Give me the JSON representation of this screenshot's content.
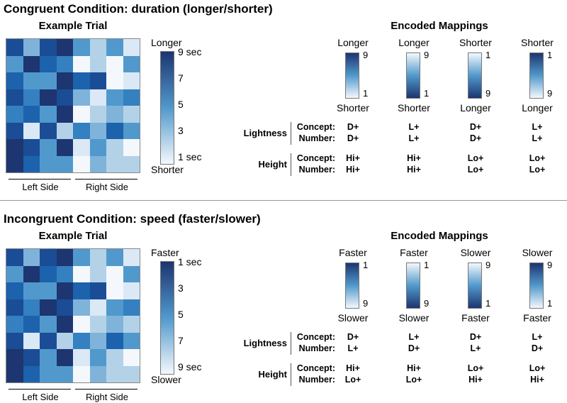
{
  "colors": {
    "light": "#f4f8fd",
    "dark": "#1d3570"
  },
  "grid_values": [
    [
      8,
      4,
      8,
      9,
      5,
      3,
      5,
      2
    ],
    [
      5,
      9,
      7,
      6,
      1,
      3,
      1,
      5
    ],
    [
      7,
      5,
      5,
      9,
      7,
      8,
      1,
      2
    ],
    [
      8,
      6,
      9,
      8,
      4,
      2,
      5,
      6
    ],
    [
      6,
      7,
      5,
      9,
      1,
      3,
      4,
      3
    ],
    [
      8,
      2,
      8,
      3,
      6,
      4,
      7,
      5
    ],
    [
      9,
      8,
      5,
      9,
      2,
      5,
      3,
      1
    ],
    [
      9,
      7,
      5,
      5,
      1,
      4,
      3,
      3
    ]
  ],
  "sections": [
    {
      "title": "Congruent Condition: duration (longer/shorter)",
      "example_title": "Example Trial",
      "left_side": "Left Side",
      "right_side": "Right Side",
      "colorbar": {
        "top_label": "Longer",
        "bottom_label": "Shorter",
        "ticks": [
          "9 sec",
          "7",
          "5",
          "3",
          "1 sec"
        ],
        "dark_top": true
      },
      "mappings_title": "Encoded Mappings",
      "mappings": [
        {
          "top_label": "Longer",
          "bottom_label": "Shorter",
          "top_num": "9",
          "bottom_num": "1",
          "dark_top": true,
          "lightness_concept": "D+",
          "lightness_number": "D+",
          "height_concept": "Hi+",
          "height_number": "Hi+"
        },
        {
          "top_label": "Longer",
          "bottom_label": "Shorter",
          "top_num": "9",
          "bottom_num": "1",
          "dark_top": false,
          "lightness_concept": "L+",
          "lightness_number": "L+",
          "height_concept": "Hi+",
          "height_number": "Hi+"
        },
        {
          "top_label": "Shorter",
          "bottom_label": "Longer",
          "top_num": "1",
          "bottom_num": "9",
          "dark_top": false,
          "lightness_concept": "D+",
          "lightness_number": "D+",
          "height_concept": "Lo+",
          "height_number": "Lo+"
        },
        {
          "top_label": "Shorter",
          "bottom_label": "Longer",
          "top_num": "1",
          "bottom_num": "9",
          "dark_top": true,
          "lightness_concept": "L+",
          "lightness_number": "L+",
          "height_concept": "Lo+",
          "height_number": "Lo+"
        }
      ],
      "row_group_lightness": "Lightness",
      "row_group_height": "Height",
      "concept_label": "Concept:",
      "number_label": "Number:"
    },
    {
      "title": "Incongruent Condition: speed (faster/slower)",
      "example_title": "Example Trial",
      "left_side": "Left Side",
      "right_side": "Right Side",
      "colorbar": {
        "top_label": "Faster",
        "bottom_label": "Slower",
        "ticks": [
          "1 sec",
          "3",
          "5",
          "7",
          "9 sec"
        ],
        "dark_top": true
      },
      "mappings_title": "Encoded Mappings",
      "mappings": [
        {
          "top_label": "Faster",
          "bottom_label": "Slower",
          "top_num": "1",
          "bottom_num": "9",
          "dark_top": true,
          "lightness_concept": "D+",
          "lightness_number": "L+",
          "height_concept": "Hi+",
          "height_number": "Lo+"
        },
        {
          "top_label": "Faster",
          "bottom_label": "Slower",
          "top_num": "1",
          "bottom_num": "9",
          "dark_top": false,
          "lightness_concept": "L+",
          "lightness_number": "D+",
          "height_concept": "Hi+",
          "height_number": "Lo+"
        },
        {
          "top_label": "Slower",
          "bottom_label": "Faster",
          "top_num": "9",
          "bottom_num": "1",
          "dark_top": false,
          "lightness_concept": "D+",
          "lightness_number": "L+",
          "height_concept": "Lo+",
          "height_number": "Hi+"
        },
        {
          "top_label": "Slower",
          "bottom_label": "Faster",
          "top_num": "9",
          "bottom_num": "1",
          "dark_top": true,
          "lightness_concept": "L+",
          "lightness_number": "D+",
          "height_concept": "Lo+",
          "height_number": "Hi+"
        }
      ],
      "row_group_lightness": "Lightness",
      "row_group_height": "Height",
      "concept_label": "Concept:",
      "number_label": "Number:"
    }
  ]
}
